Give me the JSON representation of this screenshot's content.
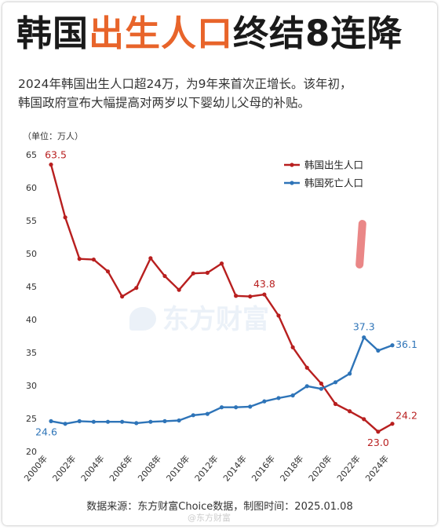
{
  "header": {
    "title_part1": "韩国",
    "title_highlight": "出生人口",
    "title_part2": "终结8连降",
    "subtitle_line1": "2024年韩国出生人口超24万，为9年来首次正增长。该年初，",
    "subtitle_line2": "韩国政府宣布大幅提高对两岁以下婴幼儿父母的补贴。"
  },
  "watermark": {
    "text": "东方财富"
  },
  "source": "数据来源：东方财富Choice数据，制图时间：2025.01.08",
  "footer_watermark": "@东方财富",
  "chart_data": {
    "type": "line",
    "unit_label": "（单位：万人）",
    "ylim": [
      20,
      65
    ],
    "yticks": [
      20,
      25,
      30,
      35,
      40,
      45,
      50,
      55,
      60,
      65
    ],
    "x": [
      2000,
      2001,
      2002,
      2003,
      2004,
      2005,
      2006,
      2007,
      2008,
      2009,
      2010,
      2011,
      2012,
      2013,
      2014,
      2015,
      2016,
      2017,
      2018,
      2019,
      2020,
      2021,
      2022,
      2023,
      2024
    ],
    "xtick_labels": [
      "2000年",
      "2002年",
      "2004年",
      "2006年",
      "2008年",
      "2010年",
      "2012年",
      "2014年",
      "2016年",
      "2018年",
      "2020年",
      "2022年",
      "2024年"
    ],
    "xtick_years": [
      2000,
      2002,
      2004,
      2006,
      2008,
      2010,
      2012,
      2014,
      2016,
      2018,
      2020,
      2022,
      2024
    ],
    "grid": false,
    "legend_position": "top-right",
    "series": [
      {
        "name": "韩国出生人口",
        "color": "#b81f1f",
        "values": [
          63.5,
          55.5,
          49.2,
          49.1,
          47.3,
          43.5,
          44.8,
          49.3,
          46.6,
          44.5,
          47.0,
          47.1,
          48.5,
          43.6,
          43.5,
          43.8,
          40.6,
          35.8,
          32.7,
          30.3,
          27.2,
          26.1,
          24.9,
          23.0,
          24.2
        ]
      },
      {
        "name": "韩国死亡人口",
        "color": "#2e74b8",
        "values": [
          24.6,
          24.2,
          24.6,
          24.5,
          24.5,
          24.5,
          24.3,
          24.5,
          24.6,
          24.7,
          25.5,
          25.7,
          26.7,
          26.7,
          26.8,
          27.6,
          28.1,
          28.5,
          29.9,
          29.5,
          30.5,
          31.8,
          37.3,
          35.3,
          36.1
        ]
      }
    ],
    "annotations": [
      {
        "series": 0,
        "year": 2000,
        "text": "63.5"
      },
      {
        "series": 0,
        "year": 2015,
        "text": "43.8"
      },
      {
        "series": 0,
        "year": 2023,
        "text": "23.0"
      },
      {
        "series": 0,
        "year": 2024,
        "text": "24.2"
      },
      {
        "series": 1,
        "year": 2000,
        "text": "24.6"
      },
      {
        "series": 1,
        "year": 2022,
        "text": "37.3"
      },
      {
        "series": 1,
        "year": 2024,
        "text": "36.1"
      }
    ]
  }
}
